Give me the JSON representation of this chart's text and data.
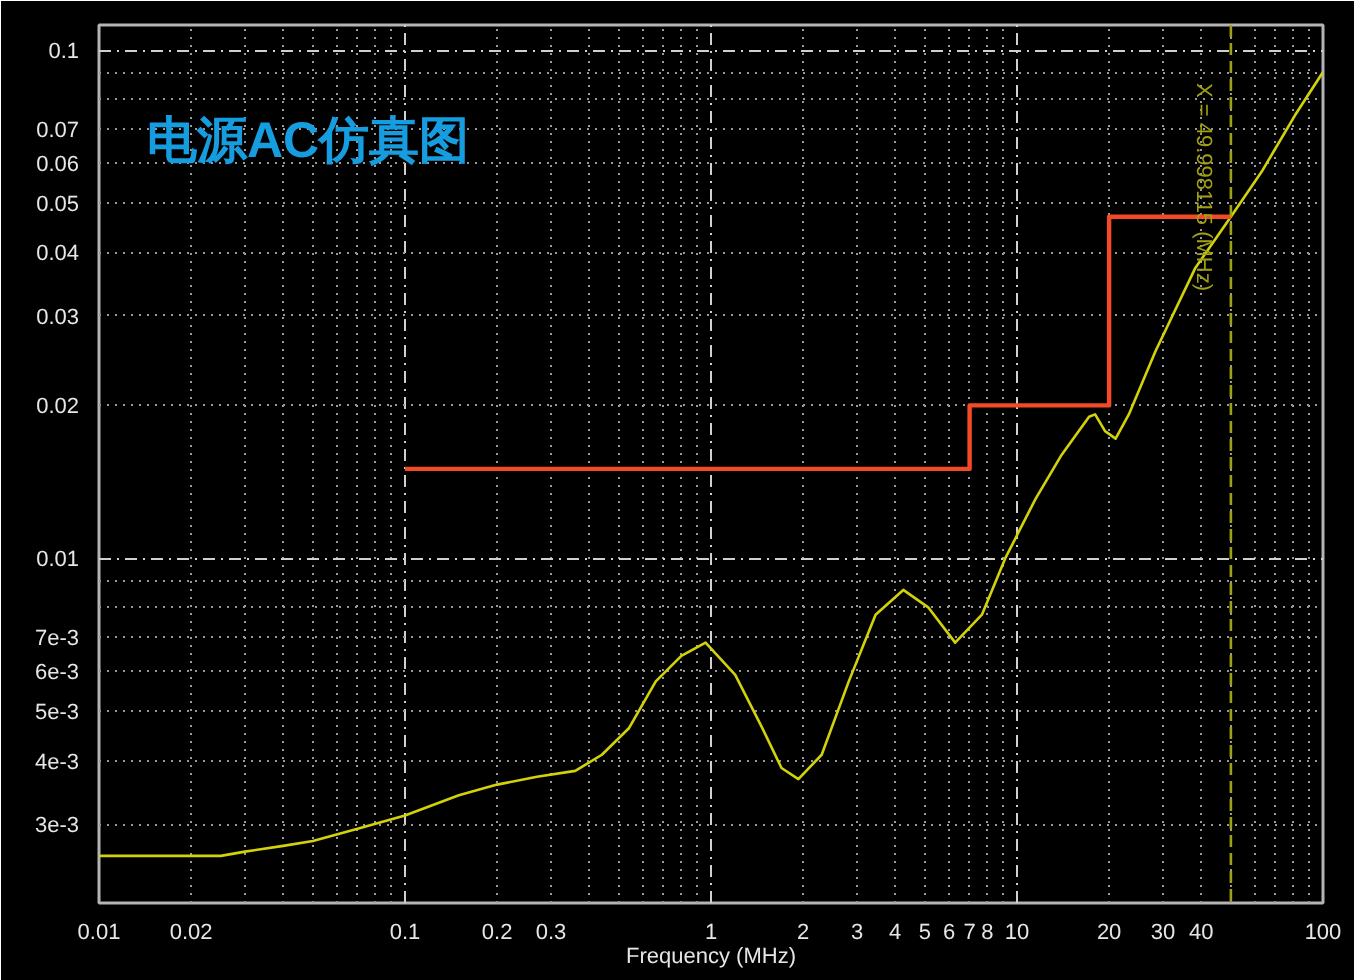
{
  "chart_data": {
    "type": "line",
    "title": "电源AC仿真图",
    "xlabel": "Frequency (MHz)",
    "log": "xy",
    "grid": true,
    "xlim": [
      0.01,
      100
    ],
    "ylim": [
      0.0021,
      0.112
    ],
    "xticks": [
      0.01,
      0.02,
      {
        "value": 0.03,
        "label": null
      },
      {
        "value": 0.04,
        "label": null
      },
      {
        "value": 0.05,
        "label": null
      },
      {
        "value": 0.06,
        "label": null
      },
      {
        "value": 0.07,
        "label": null
      },
      {
        "value": 0.08,
        "label": null
      },
      {
        "value": 0.09,
        "label": null
      },
      0.1,
      0.2,
      0.3,
      {
        "value": 0.4,
        "label": null
      },
      {
        "value": 0.5,
        "label": null
      },
      {
        "value": 0.6,
        "label": null
      },
      {
        "value": 0.7,
        "label": null
      },
      {
        "value": 0.8,
        "label": null
      },
      {
        "value": 0.9,
        "label": null
      },
      1,
      2,
      3,
      4,
      5,
      6,
      7,
      8,
      {
        "value": 9,
        "label": null
      },
      10,
      20,
      30,
      40,
      {
        "value": 50,
        "label": null
      },
      {
        "value": 60,
        "label": null
      },
      {
        "value": 70,
        "label": null
      },
      {
        "value": 80,
        "label": null
      },
      {
        "value": 90,
        "label": null
      },
      100
    ],
    "yticks": [
      {
        "value": 0.003,
        "label": "3e-3"
      },
      {
        "value": 0.004,
        "label": "4e-3"
      },
      {
        "value": 0.005,
        "label": "5e-3"
      },
      {
        "value": 0.006,
        "label": "6e-3"
      },
      {
        "value": 0.007,
        "label": "7e-3"
      },
      {
        "value": 0.008,
        "label": null
      },
      {
        "value": 0.009,
        "label": null
      },
      0.01,
      0.02,
      0.03,
      0.04,
      0.05,
      0.06,
      0.07,
      {
        "value": 0.08,
        "label": null
      },
      {
        "value": 0.09,
        "label": null
      },
      0.1
    ],
    "series": [
      {
        "color": "#d2d20a",
        "x": [
          0.01,
          0.02,
          0.025,
          0.03,
          0.04,
          0.05,
          0.07,
          0.1,
          0.15,
          0.2,
          0.27,
          0.36,
          0.44,
          0.54,
          0.66,
          0.8,
          0.96,
          1.2,
          1.47,
          1.7,
          1.93,
          2.3,
          2.82,
          3.45,
          4.25,
          5.14,
          6.28,
          7.68,
          9.15,
          11.5,
          14,
          17.2,
          18,
          19.4,
          21,
          23.2,
          28.3,
          38.2,
          50,
          63,
          81,
          100
        ],
        "values": [
          0.0026,
          0.0026,
          0.0026,
          0.00265,
          0.00272,
          0.00278,
          0.00294,
          0.00312,
          0.00342,
          0.00359,
          0.00372,
          0.00382,
          0.00411,
          0.00464,
          0.00573,
          0.00643,
          0.00683,
          0.0059,
          0.00464,
          0.00387,
          0.00368,
          0.00411,
          0.00573,
          0.00775,
          0.00867,
          0.008,
          0.00683,
          0.00775,
          0.01,
          0.0131,
          0.016,
          0.019,
          0.0192,
          0.0178,
          0.0172,
          0.0192,
          0.0255,
          0.0372,
          0.047,
          0.0576,
          0.0744,
          0.0905
        ]
      },
      {
        "type": "step",
        "color": "#f24a25",
        "x": [
          0.1,
          7,
          20,
          50
        ],
        "values": [
          0.015,
          0.02,
          0.047,
          0.047
        ]
      }
    ],
    "ref_lines": [
      {
        "axis": "x",
        "value": 49.998115,
        "label": "X = 49.998115 (MHz)",
        "color": "#a0a014",
        "line_style": "dashed"
      }
    ]
  }
}
